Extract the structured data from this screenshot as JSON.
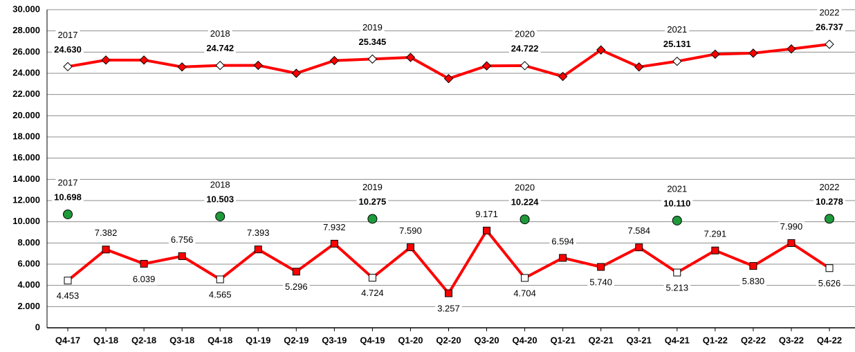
{
  "chart_data": {
    "type": "line",
    "categories": [
      "Q4-17",
      "Q1-18",
      "Q2-18",
      "Q3-18",
      "Q4-18",
      "Q1-19",
      "Q2-19",
      "Q3-19",
      "Q4-19",
      "Q1-20",
      "Q2-20",
      "Q3-20",
      "Q4-20",
      "Q1-21",
      "Q2-21",
      "Q3-21",
      "Q4-21",
      "Q1-22",
      "Q2-22",
      "Q3-22",
      "Q4-22"
    ],
    "years": [
      "2017",
      "2018",
      "2019",
      "2020",
      "2021",
      "2022"
    ],
    "series": [
      {
        "color": "#ff0000",
        "marker": "diamond",
        "values": [
          24.63,
          25.25,
          25.25,
          24.6,
          24.742,
          24.75,
          24.0,
          25.2,
          25.345,
          25.5,
          23.5,
          24.7,
          24.722,
          23.7,
          26.2,
          24.6,
          25.131,
          25.8,
          25.9,
          26.3,
          26.737
        ],
        "value_labels": [
          "24.630",
          null,
          null,
          null,
          "24.742",
          null,
          null,
          null,
          "25.345",
          null,
          null,
          null,
          "24.722",
          null,
          null,
          null,
          "25.131",
          null,
          null,
          null,
          "26.737"
        ],
        "marker_fills": [
          "#ffffff",
          "#ff0000",
          "#ff0000",
          "#ff0000",
          "#ffffff",
          "#ff0000",
          "#ff0000",
          "#ff0000",
          "#ffffff",
          "#ff0000",
          "#ff0000",
          "#ff0000",
          "#ffffff",
          "#ff0000",
          "#ff0000",
          "#ff0000",
          "#ffffff",
          "#ff0000",
          "#ff0000",
          "#ff0000",
          "#ffffff"
        ]
      },
      {
        "color": "#ff0000",
        "marker": "square",
        "values": [
          4.453,
          7.382,
          6.039,
          6.756,
          4.565,
          7.393,
          5.296,
          7.932,
          4.724,
          7.59,
          3.257,
          9.171,
          4.704,
          6.594,
          5.74,
          7.584,
          5.213,
          7.291,
          5.83,
          7.99,
          5.626
        ],
        "value_labels": [
          "4.453",
          "7.382",
          "6.039",
          "6.756",
          "4.565",
          "7.393",
          "5.296",
          "7.932",
          "4.724",
          "7.590",
          "3.257",
          "9.171",
          "4.704",
          "6.594",
          "5.740",
          "7.584",
          "5.213",
          "7.291",
          "5.830",
          "7.990",
          "5.626"
        ],
        "marker_fills": [
          "#ffffff",
          "#ff0000",
          "#ff0000",
          "#ff0000",
          "#ffffff",
          "#ff0000",
          "#ff0000",
          "#ff0000",
          "#ffffff",
          "#ff0000",
          "#ff0000",
          "#ff0000",
          "#ffffff",
          "#ff0000",
          "#ff0000",
          "#ff0000",
          "#ffffff",
          "#ff0000",
          "#ff0000",
          "#ff0000",
          "#ffffff"
        ]
      },
      {
        "color": "#1f9a3a",
        "marker": "circle",
        "values": [
          10.698,
          null,
          null,
          null,
          10.503,
          null,
          null,
          null,
          10.275,
          null,
          null,
          null,
          10.224,
          null,
          null,
          null,
          10.11,
          null,
          null,
          null,
          10.278
        ],
        "value_labels": [
          "10.698",
          null,
          null,
          null,
          "10.503",
          null,
          null,
          null,
          "10.275",
          null,
          null,
          null,
          "10.224",
          null,
          null,
          null,
          "10.110",
          null,
          null,
          null,
          "10.278"
        ]
      }
    ],
    "ylim": [
      0,
      30
    ],
    "yticks": [
      0,
      {
        "value": 2,
        "label": "2.000"
      },
      {
        "value": 4,
        "label": "4.000"
      },
      {
        "value": 6,
        "label": "6.000"
      },
      {
        "value": 8,
        "label": "8.000"
      },
      {
        "value": 10,
        "label": "10.000"
      },
      {
        "value": 12,
        "label": "12.000"
      },
      {
        "value": 14,
        "label": "14.000"
      },
      {
        "value": 16,
        "label": "16.000"
      },
      {
        "value": 18,
        "label": "18.000"
      },
      {
        "value": 20,
        "label": "20.000"
      },
      {
        "value": 22,
        "label": "22.000"
      },
      {
        "value": 24,
        "label": "24.000"
      },
      {
        "value": 26,
        "label": "26.000"
      },
      {
        "value": 28,
        "label": "28.000"
      },
      {
        "value": 30,
        "label": "30.000"
      }
    ],
    "grid": true
  }
}
